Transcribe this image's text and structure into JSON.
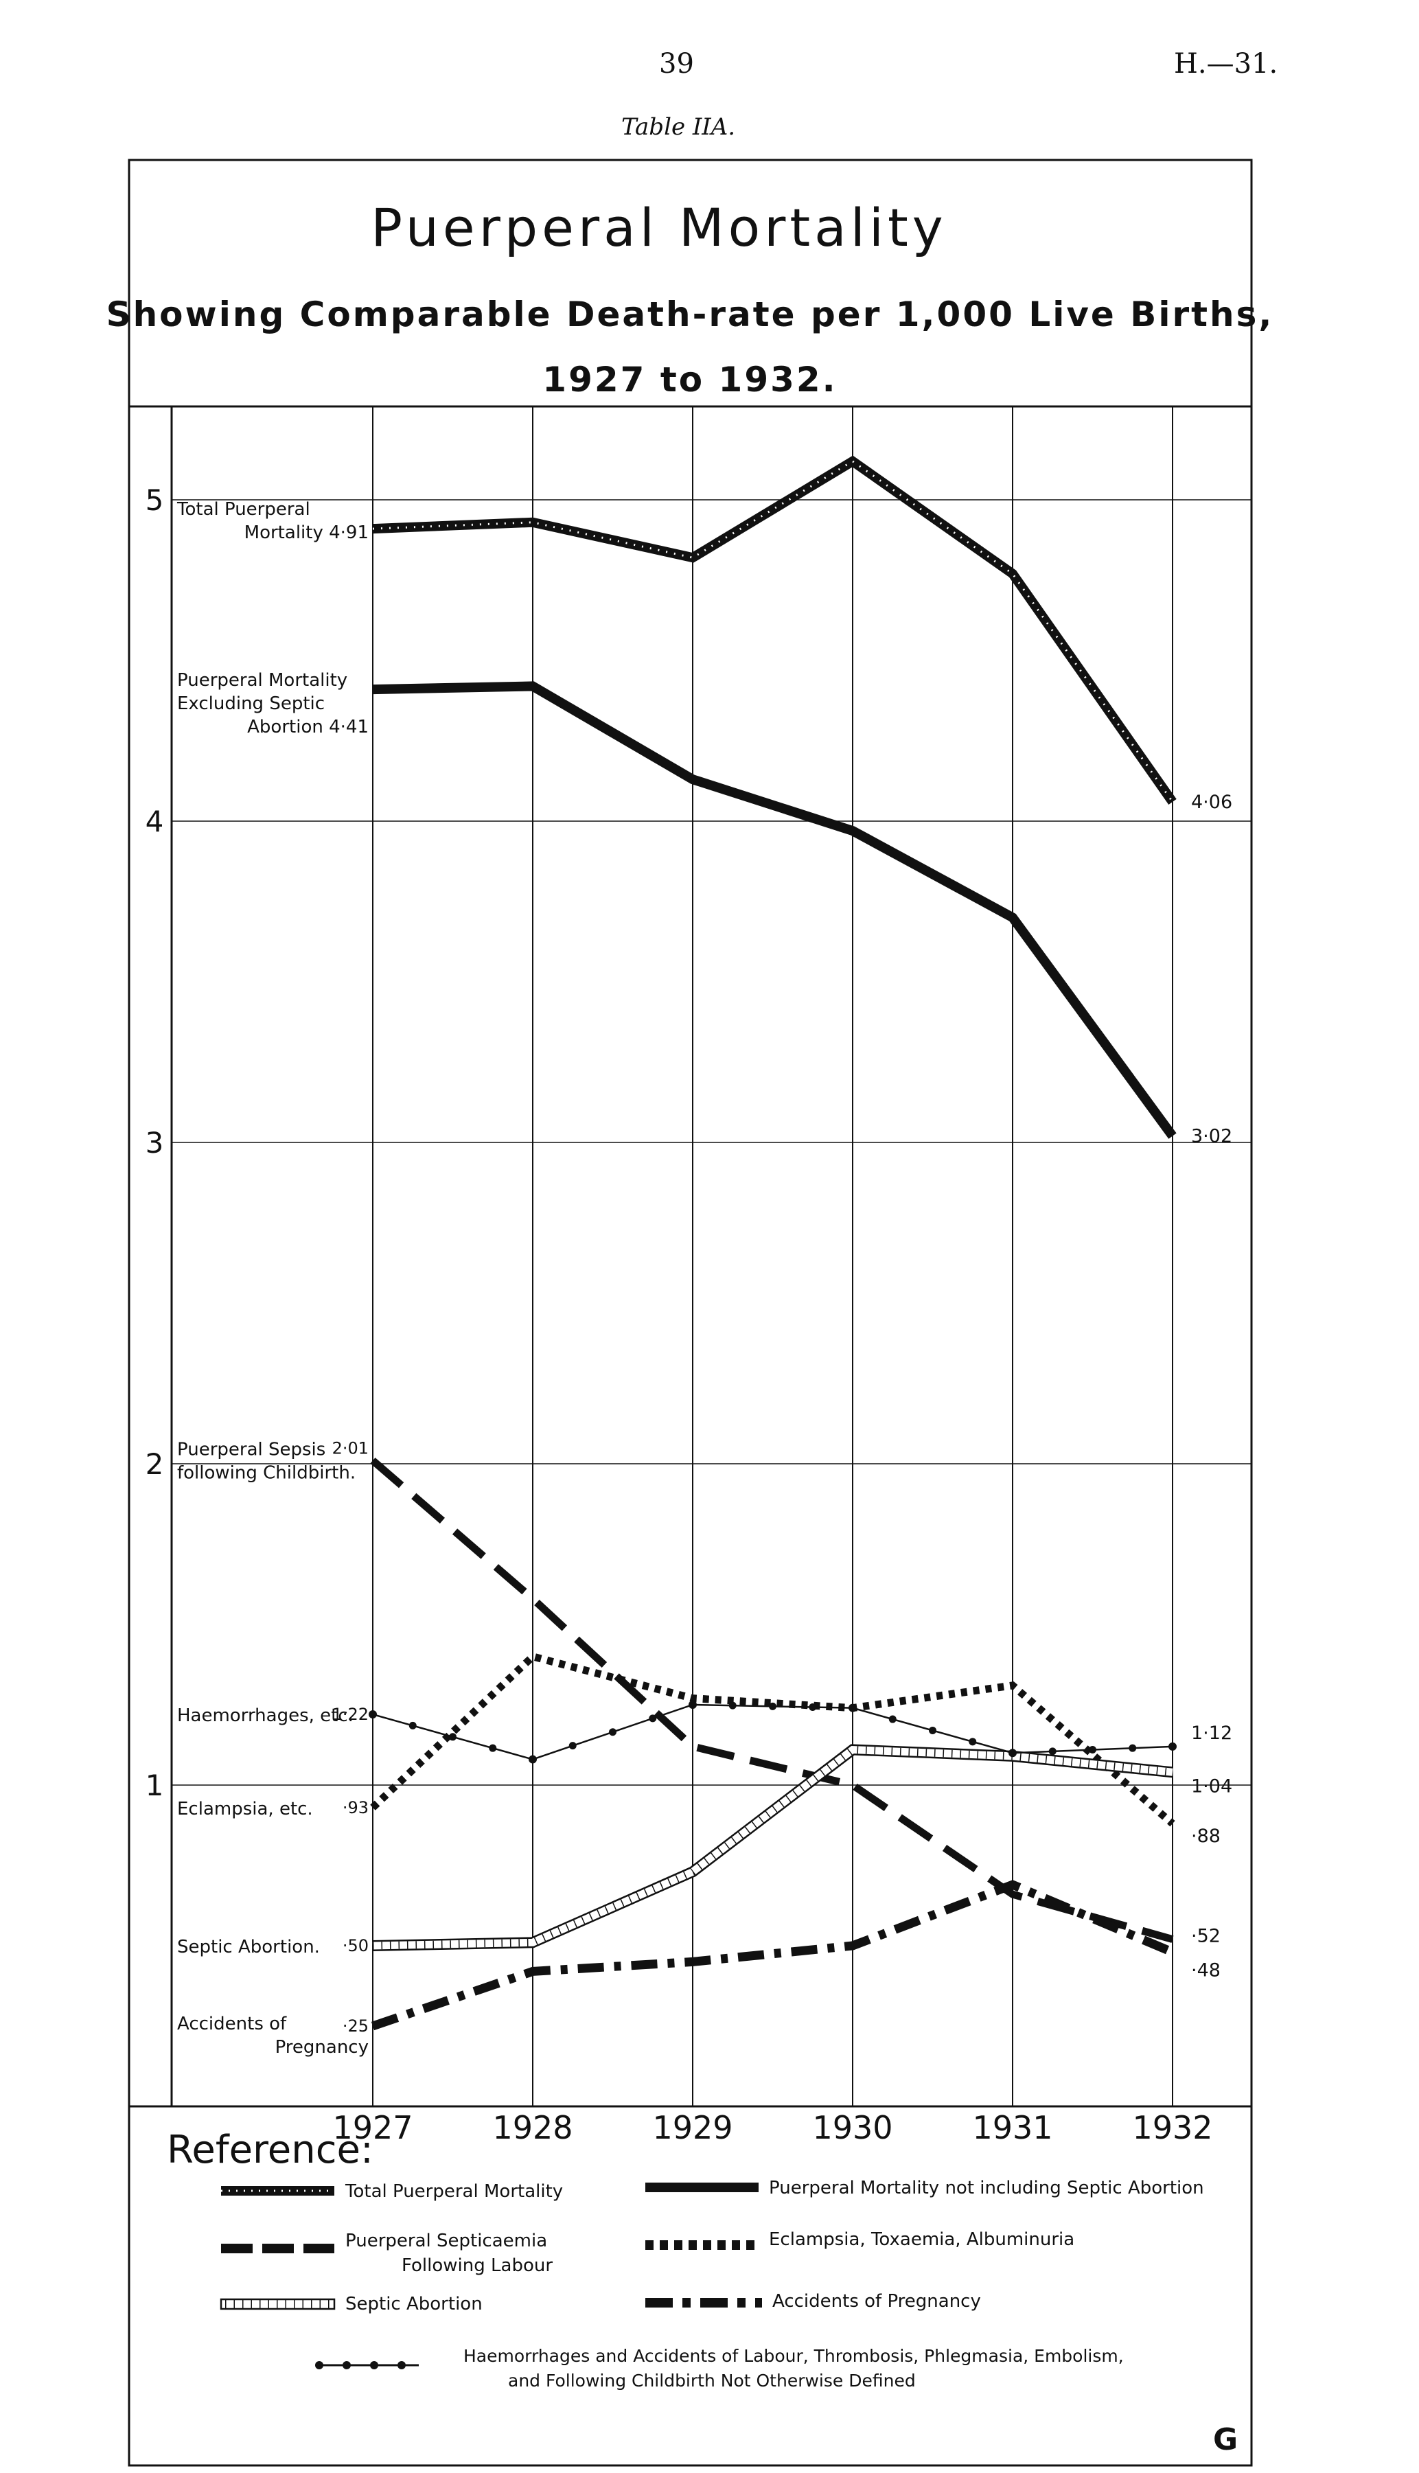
{
  "header": {
    "page_number": "39",
    "document_code": "H.—31.",
    "table_caption": "Table IIA."
  },
  "chart_data": {
    "type": "line",
    "title": "Puerperal Mortality",
    "subtitle_line1": "Showing Comparable Death-rate per 1,000 Live Births,",
    "subtitle_line2": "1927 to 1932.",
    "x": [
      "1927",
      "1928",
      "1929",
      "1930",
      "1931",
      "1932"
    ],
    "xlabel": "",
    "ylabel": "",
    "ylim": [
      0,
      5.2
    ],
    "y_ticks": [
      "1",
      "2",
      "3",
      "4",
      "5"
    ],
    "grid": true,
    "legend_placement": "bottom",
    "series": [
      {
        "key": "total",
        "name": "Total Puerperal Mortality",
        "start_label_lines": [
          "Total Puerperal",
          "Mortality 4·91"
        ],
        "end_label": "4·06",
        "values": [
          4.91,
          4.93,
          4.82,
          5.12,
          4.77,
          4.06
        ]
      },
      {
        "key": "excl",
        "name": "Puerperal Mortality not including Septic Abortion",
        "start_label_lines": [
          "Puerperal Mortality",
          "Excluding Septic",
          "Abortion 4·41"
        ],
        "end_label": "3·02",
        "values": [
          4.41,
          4.42,
          4.13,
          3.97,
          3.7,
          3.02
        ]
      },
      {
        "key": "sepsis",
        "name": "Puerperal Septicaemia Following Labour",
        "start_label_lines": [
          "Puerperal Sepsis",
          "following Childbirth."
        ],
        "start_value": "2·01",
        "end_label": "·52",
        "values": [
          2.01,
          1.58,
          1.12,
          1.0,
          0.66,
          0.52
        ]
      },
      {
        "key": "eclampsia",
        "name": "Eclampsia, Toxaemia, Albuminuria",
        "start_label_lines": [
          "Eclampsia, etc."
        ],
        "start_value": "·93",
        "end_label": "·88",
        "values": [
          0.93,
          1.4,
          1.27,
          1.24,
          1.31,
          0.88
        ]
      },
      {
        "key": "septic",
        "name": "Septic Abortion",
        "start_label_lines": [
          "Septic Abortion."
        ],
        "start_value": "·50",
        "end_label": "1·04",
        "values": [
          0.5,
          0.51,
          0.73,
          1.11,
          1.09,
          1.04
        ]
      },
      {
        "key": "haem",
        "name": "Haemorrhages and Accidents of Labour, Thrombosis, Phlegmasia, Embolism, and Following Childbirth Not Otherwise Defined",
        "start_label_lines": [
          "Haemorrhages, etc."
        ],
        "start_value": "1·22",
        "end_label": "1·12",
        "values": [
          1.22,
          1.08,
          1.25,
          1.24,
          1.1,
          1.12
        ]
      },
      {
        "key": "accidents",
        "name": "Accidents of Pregnancy",
        "start_label_lines": [
          "Accidents of",
          "Pregnancy"
        ],
        "start_value": "·25",
        "end_label": "·48",
        "values": [
          0.25,
          0.42,
          0.45,
          0.5,
          0.69,
          0.48
        ]
      }
    ]
  },
  "legend": {
    "heading": "Reference:",
    "items": {
      "total": "Total Puerperal Mortality",
      "excl": "Puerperal Mortality not including Septic Abortion",
      "sepsis_line1": "Puerperal Septicaemia",
      "sepsis_line2": "Following Labour",
      "eclampsia": "Eclampsia, Toxaemia, Albuminuria",
      "septic": "Septic Abortion",
      "accidents": "Accidents of Pregnancy",
      "haem_line1": "Haemorrhages and Accidents of Labour, Thrombosis, Phlegmasia, Embolism,",
      "haem_line2": "and Following Childbirth Not Otherwise Defined"
    }
  },
  "monogram": "G",
  "colors": {
    "ink": "#111111",
    "paper": "#ffffff"
  }
}
